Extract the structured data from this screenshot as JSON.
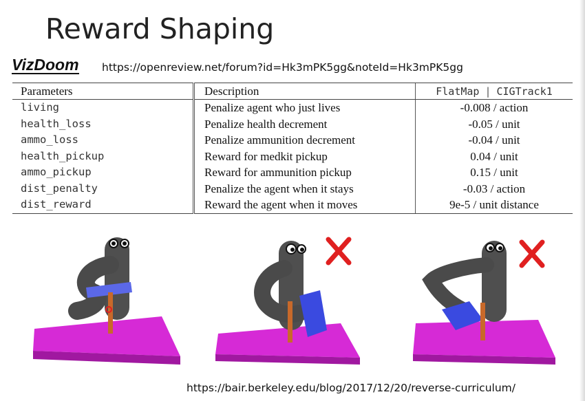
{
  "title": "Reward Shaping",
  "section_label": "VizDoom",
  "section_url": "https://openreview.net/forum?id=Hk3mPK5gg&noteId=Hk3mPK5gg",
  "table": {
    "headers": {
      "parameters": "Parameters",
      "description": "Description",
      "flatmap": "FlatMap",
      "cigtrack": "CIGTrack1"
    },
    "rows": [
      {
        "param": "living",
        "description": "Penalize agent who just lives",
        "value": "-0.008 / action"
      },
      {
        "param": "health_loss",
        "description": "Penalize health decrement",
        "value": "-0.05 / unit"
      },
      {
        "param": "ammo_loss",
        "description": "Penalize ammunition decrement",
        "value": "-0.04 / unit"
      },
      {
        "param": "health_pickup",
        "description": "Reward for medkit pickup",
        "value": "0.04 / unit"
      },
      {
        "param": "ammo_pickup",
        "description": "Reward for ammunition pickup",
        "value": "0.15 / unit"
      },
      {
        "param": "dist_penalty",
        "description": "Penalize the agent when it stays",
        "value": "-0.03 / action"
      },
      {
        "param": "dist_reward",
        "description": "Reward the agent when it moves",
        "value": "9e-5 / unit distance"
      }
    ]
  },
  "scenes": [
    {
      "name": "robot-scene-success",
      "marked_wrong": false
    },
    {
      "name": "robot-scene-fail-1",
      "marked_wrong": true
    },
    {
      "name": "robot-scene-fail-2",
      "marked_wrong": true
    }
  ],
  "colors": {
    "platform": "#d62ad6",
    "platform_dark": "#a018a0",
    "robot": "#4a4a4a",
    "ring": "#5b68e8",
    "peg": "#c8692a",
    "cross": "#e02020"
  },
  "footer_url": "https://bair.berkeley.edu/blog/2017/12/20/reverse-curriculum/"
}
